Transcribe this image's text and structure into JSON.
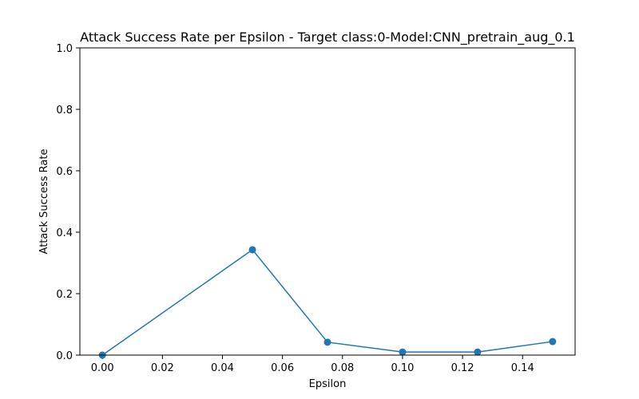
{
  "chart_data": {
    "type": "line",
    "title": "Attack Success Rate per Epsilon - Target class:0-Model:CNN_pretrain_aug_0.1",
    "xlabel": "Epsilon",
    "ylabel": "Attack Success Rate",
    "xlim": [
      -0.0075,
      0.1575
    ],
    "ylim": [
      0,
      1
    ],
    "x_ticks": [
      "0.00",
      "0.02",
      "0.04",
      "0.06",
      "0.08",
      "0.10",
      "0.12",
      "0.14"
    ],
    "y_ticks": [
      "0.0",
      "0.2",
      "0.4",
      "0.6",
      "0.8",
      "1.0"
    ],
    "grid": false,
    "series": [
      {
        "color": "#1f77b4",
        "marker": "circle",
        "x": [
          0.0,
          0.05,
          0.075,
          0.1,
          0.125,
          0.15
        ],
        "y": [
          0.0,
          0.343,
          0.042,
          0.01,
          0.01,
          0.044
        ]
      }
    ]
  }
}
